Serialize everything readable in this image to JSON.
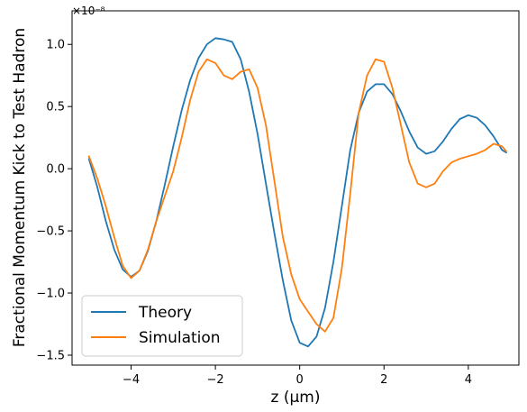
{
  "chart_data": {
    "type": "line",
    "xlabel": "z (μm)",
    "ylabel": "Fractional Momentum Kick to Test Hadron",
    "y_offset_label": "×10⁻⁸",
    "xlim": [
      -5.4,
      5.2
    ],
    "ylim": [
      -1.58,
      1.27
    ],
    "xticks": [
      -4,
      -2,
      0,
      2,
      4
    ],
    "xtick_labels": [
      "−4",
      "−2",
      "0",
      "2",
      "4"
    ],
    "yticks": [
      -1.5,
      -1.0,
      -0.5,
      0.0,
      0.5,
      1.0
    ],
    "ytick_labels": [
      "−1.5",
      "−1.0",
      "−0.5",
      "0.0",
      "0.5",
      "1.0"
    ],
    "grid": false,
    "legend_position": "lower-left",
    "series": [
      {
        "name": "Theory",
        "color": "#1f77b4",
        "x": [
          -5.0,
          -4.8,
          -4.6,
          -4.4,
          -4.2,
          -4.0,
          -3.8,
          -3.6,
          -3.4,
          -3.2,
          -3.0,
          -2.8,
          -2.6,
          -2.4,
          -2.2,
          -2.0,
          -1.8,
          -1.6,
          -1.4,
          -1.2,
          -1.0,
          -0.8,
          -0.6,
          -0.4,
          -0.2,
          0.0,
          0.2,
          0.4,
          0.6,
          0.8,
          1.0,
          1.2,
          1.4,
          1.6,
          1.8,
          2.0,
          2.2,
          2.4,
          2.6,
          2.8,
          3.0,
          3.2,
          3.4,
          3.6,
          3.8,
          4.0,
          4.2,
          4.4,
          4.6,
          4.8,
          4.9
        ],
        "y": [
          0.08,
          -0.15,
          -0.42,
          -0.65,
          -0.81,
          -0.87,
          -0.82,
          -0.66,
          -0.42,
          -0.13,
          0.18,
          0.47,
          0.71,
          0.89,
          1.0,
          1.05,
          1.04,
          1.02,
          0.88,
          0.62,
          0.28,
          -0.12,
          -0.52,
          -0.9,
          -1.22,
          -1.4,
          -1.43,
          -1.35,
          -1.12,
          -0.75,
          -0.3,
          0.15,
          0.45,
          0.62,
          0.68,
          0.68,
          0.6,
          0.46,
          0.3,
          0.17,
          0.12,
          0.14,
          0.22,
          0.32,
          0.4,
          0.43,
          0.41,
          0.35,
          0.26,
          0.15,
          0.13
        ]
      },
      {
        "name": "Simulation",
        "color": "#ff7f0e",
        "x": [
          -5.0,
          -4.8,
          -4.6,
          -4.4,
          -4.2,
          -4.0,
          -3.8,
          -3.6,
          -3.4,
          -3.2,
          -3.0,
          -2.8,
          -2.6,
          -2.4,
          -2.2,
          -2.0,
          -1.8,
          -1.6,
          -1.4,
          -1.2,
          -1.0,
          -0.8,
          -0.6,
          -0.4,
          -0.2,
          0.0,
          0.2,
          0.4,
          0.6,
          0.8,
          1.0,
          1.2,
          1.4,
          1.6,
          1.8,
          2.0,
          2.2,
          2.4,
          2.6,
          2.8,
          3.0,
          3.2,
          3.4,
          3.6,
          3.8,
          4.0,
          4.2,
          4.4,
          4.6,
          4.8,
          4.9
        ],
        "y": [
          0.1,
          -0.08,
          -0.3,
          -0.55,
          -0.78,
          -0.88,
          -0.82,
          -0.65,
          -0.42,
          -0.22,
          -0.02,
          0.25,
          0.55,
          0.78,
          0.88,
          0.85,
          0.75,
          0.72,
          0.78,
          0.8,
          0.65,
          0.35,
          -0.1,
          -0.55,
          -0.85,
          -1.05,
          -1.15,
          -1.25,
          -1.31,
          -1.2,
          -0.8,
          -0.2,
          0.45,
          0.75,
          0.88,
          0.86,
          0.65,
          0.35,
          0.05,
          -0.12,
          -0.15,
          -0.12,
          -0.02,
          0.05,
          0.08,
          0.1,
          0.12,
          0.15,
          0.2,
          0.18,
          0.14
        ]
      }
    ]
  }
}
